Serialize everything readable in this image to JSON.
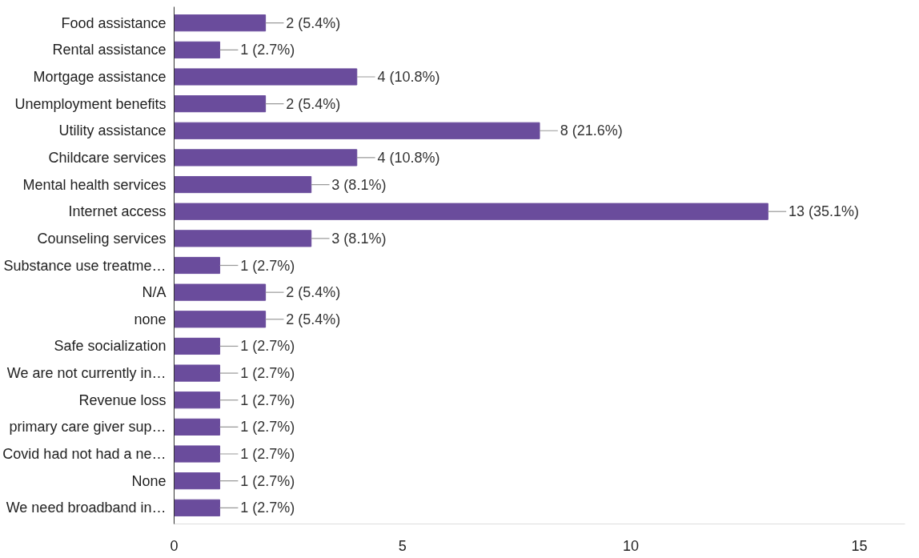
{
  "chart_data": {
    "type": "bar",
    "orientation": "horizontal",
    "categories": [
      "Food assistance",
      "Rental assistance",
      "Mortgage assistance",
      "Unemployment benefits",
      "Utility assistance",
      "Childcare services",
      "Mental health services",
      "Internet access",
      "Counseling services",
      "Substance use treatme…",
      "N/A",
      "none",
      "Safe socialization",
      "We are not currently in…",
      "Revenue loss",
      "primary care giver sup…",
      "Covid had not had a ne…",
      "None",
      "We need broadband in…"
    ],
    "values": [
      2,
      1,
      4,
      2,
      8,
      4,
      3,
      13,
      3,
      1,
      2,
      2,
      1,
      1,
      1,
      1,
      1,
      1,
      1
    ],
    "value_labels": [
      "2 (5.4%)",
      "1 (2.7%)",
      "4 (10.8%)",
      "2 (5.4%)",
      "8 (21.6%)",
      "4 (10.8%)",
      "3 (8.1%)",
      "13 (35.1%)",
      "3 (8.1%)",
      "1 (2.7%)",
      "2 (5.4%)",
      "2 (5.4%)",
      "1 (2.7%)",
      "1 (2.7%)",
      "1 (2.7%)",
      "1 (2.7%)",
      "1 (2.7%)",
      "1 (2.7%)",
      "1 (2.7%)"
    ],
    "color": "#6a4c9c",
    "xlim": [
      0,
      16
    ],
    "xticks": [
      0,
      5,
      10,
      15
    ],
    "grid": false
  }
}
